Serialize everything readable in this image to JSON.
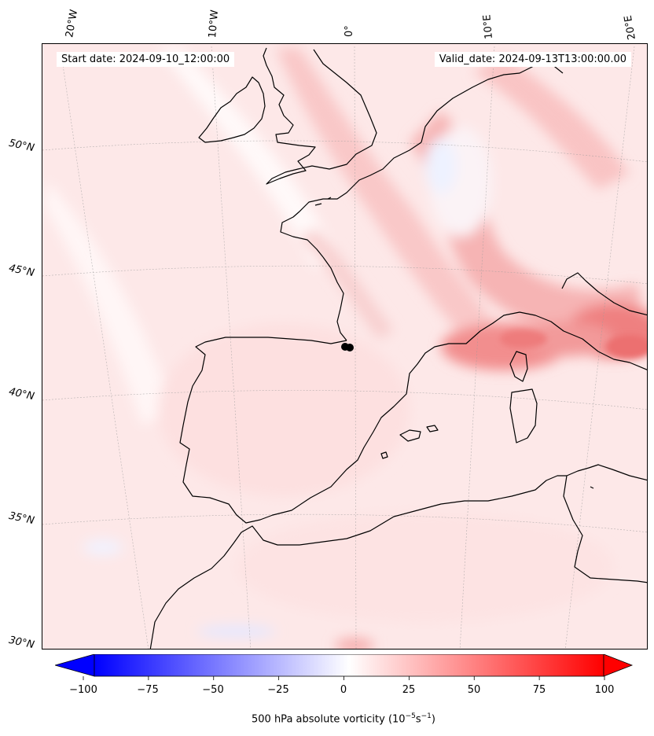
{
  "map": {
    "start_date": "Start date: 2024-09-10_12:00:00",
    "valid_date": "Valid_date: 2024-09-13T13:00:00.00",
    "projection": "conic",
    "field": "500 hPa absolute vorticity",
    "lon_labels": [
      "20°W",
      "10°W",
      "0°",
      "10°E",
      "20°E"
    ],
    "lat_labels": [
      "50°N",
      "45°N",
      "40°N",
      "35°N",
      "30°N"
    ],
    "marker": {
      "lat": 42.0,
      "lon": -0.2
    }
  },
  "colorbar": {
    "label_text": "500 hPa absolute vorticity (10",
    "label_exp1": "−5",
    "label_mid": "s",
    "label_exp2": "−1",
    "label_end": ")",
    "ticks": [
      "−100",
      "−75",
      "−50",
      "−25",
      "0",
      "25",
      "50",
      "75",
      "100"
    ],
    "range": [
      -100,
      100
    ],
    "colormap": "bwr",
    "extend": "both",
    "colors": {
      "low": "#0000ff",
      "mid": "#ffffff",
      "high": "#ff0000"
    }
  }
}
